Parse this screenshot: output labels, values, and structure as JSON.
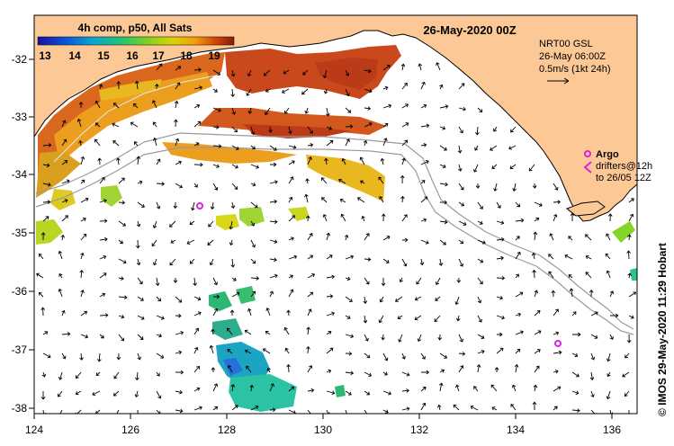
{
  "title": "26-May-2020 00Z",
  "colorbar": {
    "label": "4h comp, p50, All Sats",
    "ticks": [
      "13",
      "14",
      "15",
      "16",
      "17",
      "18",
      "19"
    ],
    "colors": [
      "#1a0fa0",
      "#0a55d8",
      "#09a6d0",
      "#22c07a",
      "#7ed21e",
      "#d6d40c",
      "#f2a00a",
      "#d24a0a",
      "#8a1a05"
    ]
  },
  "current_info": {
    "line1": "NRT00 GSL",
    "line2": "26-May 06:00Z",
    "line3": "0.5m/s (1kt 24h)"
  },
  "argo": {
    "label": "Argo",
    "line2": "drifters@12h",
    "line3": "to 26/05 12Z",
    "color": "#e020e0"
  },
  "credit": "© IMOS 29-May-2020 11:29 Hobart",
  "axes": {
    "x_ticks": [
      "124",
      "126",
      "128",
      "130",
      "132",
      "134",
      "136"
    ],
    "y_ticks": [
      "-32",
      "-33",
      "-34",
      "-35",
      "-36",
      "-37",
      "-38"
    ]
  },
  "colors": {
    "land": "#fcc896",
    "sea": "#ffffff"
  }
}
